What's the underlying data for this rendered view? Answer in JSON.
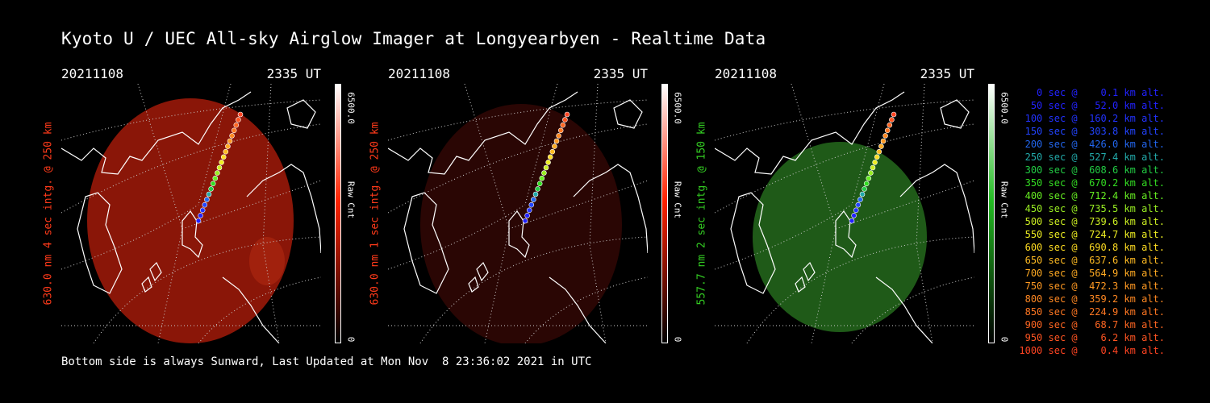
{
  "title": "Kyoto U / UEC All-sky Airglow Imager at Longyearbyen - Realtime Data",
  "colors": {
    "background": "#000000",
    "text": "#ffffff",
    "red": "#ff3a1a",
    "green": "#33cc22"
  },
  "panels": [
    {
      "date": "20211108",
      "time": "2335 UT",
      "side_label": "630.0 nm 4 sec intg. @ 250 km",
      "side_color": "#ff3a1a",
      "cbar_max": "6500.0",
      "cbar_unit": "Raw Cnt",
      "cbar_min": "0",
      "cbar_color": "#ff2200",
      "glow": "red-bright"
    },
    {
      "date": "20211108",
      "time": "2335 UT",
      "side_label": "630.0 nm 1 sec intg. @ 250 km",
      "side_color": "#ff3a1a",
      "cbar_max": "6500.0",
      "cbar_unit": "Raw Cnt",
      "cbar_min": "0",
      "cbar_color": "#ff2200",
      "glow": "red-dim"
    },
    {
      "date": "20211108",
      "time": "2335 UT",
      "side_label": "557.7 nm 2 sec intg. @ 150 km",
      "side_color": "#33cc22",
      "cbar_max": "6500.0",
      "cbar_unit": "Raw Cnt",
      "cbar_min": "0",
      "cbar_color": "#22bb22",
      "glow": "green"
    }
  ],
  "legend": [
    {
      "text": "   0 sec @    0.1 km alt.",
      "color": "#2222ff"
    },
    {
      "text": "  50 sec @   52.0 km alt.",
      "color": "#2222ff"
    },
    {
      "text": " 100 sec @  160.2 km alt.",
      "color": "#2233ff"
    },
    {
      "text": " 150 sec @  303.8 km alt.",
      "color": "#2244ff"
    },
    {
      "text": " 200 sec @  426.0 km alt.",
      "color": "#2266ee"
    },
    {
      "text": " 250 sec @  527.4 km alt.",
      "color": "#22aaaa"
    },
    {
      "text": " 300 sec @  608.6 km alt.",
      "color": "#22cc44"
    },
    {
      "text": " 350 sec @  670.2 km alt.",
      "color": "#33dd22"
    },
    {
      "text": " 400 sec @  712.4 km alt.",
      "color": "#66ee22"
    },
    {
      "text": " 450 sec @  735.5 km alt.",
      "color": "#99ee22"
    },
    {
      "text": " 500 sec @  739.6 km alt.",
      "color": "#ccee22"
    },
    {
      "text": " 550 sec @  724.7 km alt.",
      "color": "#eeee22"
    },
    {
      "text": " 600 sec @  690.8 km alt.",
      "color": "#ffdd22"
    },
    {
      "text": " 650 sec @  637.6 km alt.",
      "color": "#ffbb22"
    },
    {
      "text": " 700 sec @  564.9 km alt.",
      "color": "#ffaa22"
    },
    {
      "text": " 750 sec @  472.3 km alt.",
      "color": "#ff9922"
    },
    {
      "text": " 800 sec @  359.2 km alt.",
      "color": "#ff8822"
    },
    {
      "text": " 850 sec @  224.9 km alt.",
      "color": "#ff7722"
    },
    {
      "text": " 900 sec @   68.7 km alt.",
      "color": "#ff6622"
    },
    {
      "text": " 950 sec @    6.2 km alt.",
      "color": "#ff5522"
    },
    {
      "text": "1000 sec @    0.4 km alt.",
      "color": "#ff4422"
    }
  ],
  "footer": "Bottom side is always Sunward, Last Updated at Mon Nov  8 23:36:02 2021 in UTC"
}
